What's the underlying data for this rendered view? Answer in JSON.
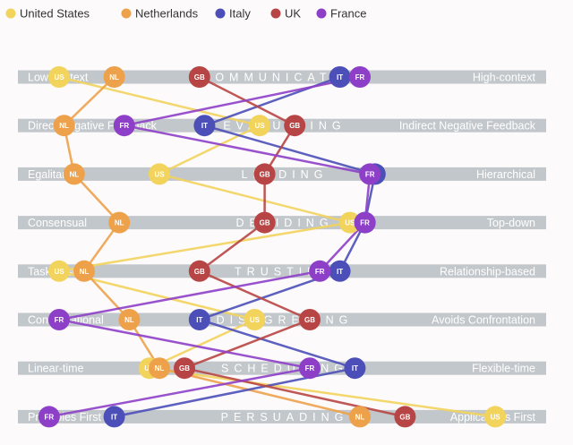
{
  "chart_data": {
    "type": "culture-map",
    "x_range": [
      0,
      100
    ],
    "legend": [
      {
        "name": "United States",
        "code": "US",
        "color": "#f2d35c"
      },
      {
        "name": "Netherlands",
        "code": "NL",
        "color": "#eda14b"
      },
      {
        "name": "Italy",
        "code": "IT",
        "color": "#4d4fb8"
      },
      {
        "name": "UK",
        "code": "GB",
        "color": "#b84545"
      },
      {
        "name": "France",
        "code": "FR",
        "color": "#8e3fc8"
      }
    ],
    "scales": [
      {
        "name": "COMMUNICATING",
        "left": "Low-context",
        "right": "High-context"
      },
      {
        "name": "EVALUATING",
        "left": "Direct Negative Feedback",
        "right": "Indirect Negative Feedback"
      },
      {
        "name": "LEADING",
        "left": "Egalitarian",
        "right": "Hierarchical"
      },
      {
        "name": "DECIDING",
        "left": "Consensual",
        "right": "Top-down"
      },
      {
        "name": "TRUSTING",
        "left": "Task-based",
        "right": "Relationship-based"
      },
      {
        "name": "DISAGREEING",
        "left": "Confrontational",
        "right": "Avoids Confrontation"
      },
      {
        "name": "SCHEDULING",
        "left": "Linear-time",
        "right": "Flexible-time"
      },
      {
        "name": "PERSUADING",
        "left": "Principles First",
        "right": "Applications First"
      }
    ],
    "series": [
      {
        "code": "US",
        "values": [
          5,
          45,
          25,
          63,
          5,
          44,
          23,
          92
        ]
      },
      {
        "code": "NL",
        "values": [
          16,
          6,
          8,
          17,
          10,
          19,
          25,
          65
        ]
      },
      {
        "code": "IT",
        "values": [
          61,
          34,
          68,
          66,
          61,
          33,
          64,
          16
        ]
      },
      {
        "code": "GB",
        "values": [
          33,
          52,
          46,
          46,
          33,
          55,
          30,
          74
        ]
      },
      {
        "code": "FR",
        "values": [
          65,
          18,
          67,
          66,
          57,
          5,
          55,
          3
        ]
      }
    ]
  }
}
